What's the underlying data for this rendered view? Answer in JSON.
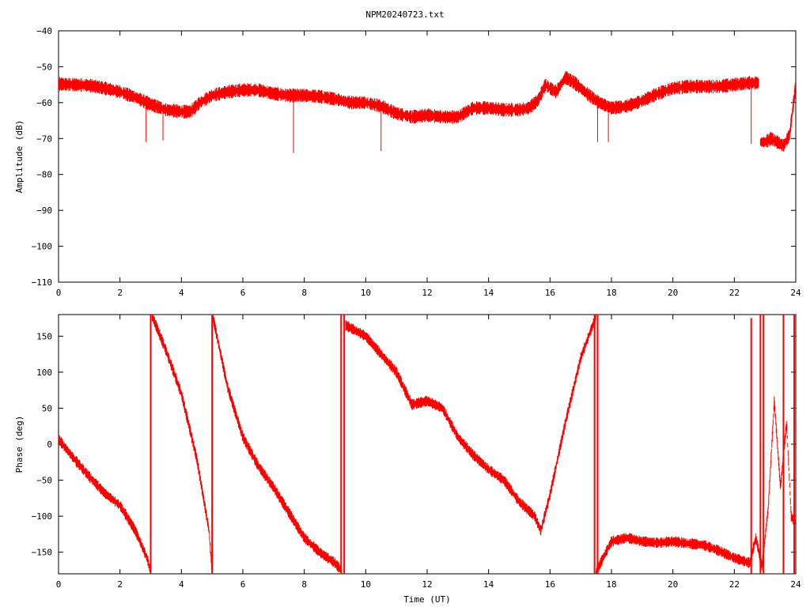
{
  "title": "NPM20240723.txt",
  "chart_data": [
    {
      "type": "line",
      "name": "amplitude",
      "ylabel": "Amplitude (dB)",
      "xlabel": "",
      "xlim": [
        0,
        24
      ],
      "ylim": [
        -110,
        -40
      ],
      "xticks": [
        0,
        2,
        4,
        6,
        8,
        10,
        12,
        14,
        16,
        18,
        20,
        22,
        24
      ],
      "yticks": [
        -110,
        -100,
        -90,
        -80,
        -70,
        -60,
        -50,
        -40
      ],
      "color": "#ff0000",
      "series": [
        {
          "x": [
            0,
            0.5,
            1,
            1.5,
            2,
            2.5,
            3,
            3.5,
            4,
            4.3,
            4.6,
            5,
            5.5,
            6,
            6.5,
            7,
            7.5,
            8,
            8.5,
            9,
            9.5,
            10,
            10.5,
            11,
            11.5,
            12,
            12.5,
            13,
            13.5,
            14,
            14.5,
            15,
            15.3,
            15.6,
            15.85,
            16,
            16.2,
            16.5,
            16.8,
            17.2,
            17.6,
            18,
            18.5,
            19,
            19.5,
            20,
            20.5,
            21,
            21.5,
            22,
            22.5,
            22.8
          ],
          "y": [
            -54.8,
            -55,
            -55.2,
            -56,
            -57,
            -58.5,
            -60.5,
            -62,
            -62.5,
            -62.5,
            -60,
            -58,
            -57,
            -56.5,
            -56.5,
            -57.5,
            -58,
            -58,
            -58.3,
            -59,
            -60,
            -60,
            -61,
            -63,
            -64,
            -63.5,
            -64,
            -64,
            -61.5,
            -61.5,
            -62,
            -62,
            -61.5,
            -59.5,
            -55,
            -56,
            -57,
            -53,
            -54.5,
            -57.5,
            -60,
            -61.5,
            -61,
            -59.5,
            -57.5,
            -56,
            -55.5,
            -55.5,
            -55.5,
            -55,
            -54.5,
            -54.5
          ]
        },
        {
          "x": [
            22.85,
            23,
            23.2,
            23.4,
            23.6,
            23.8,
            23.9,
            24
          ],
          "y": [
            -71,
            -71,
            -70,
            -71,
            -72,
            -69,
            -62,
            -55
          ]
        }
      ],
      "spikes": [
        {
          "x": 2.85,
          "y": -71
        },
        {
          "x": 3.4,
          "y": -70.5
        },
        {
          "x": 7.65,
          "y": -74
        },
        {
          "x": 10.5,
          "y": -73.5
        },
        {
          "x": 17.55,
          "y": -71
        },
        {
          "x": 17.9,
          "y": -71
        },
        {
          "x": 22.55,
          "y": -71.5
        }
      ]
    },
    {
      "type": "line",
      "name": "phase",
      "ylabel": "Phase (deg)",
      "xlabel": "Time (UT)",
      "xlim": [
        0,
        24
      ],
      "ylim": [
        -180,
        180
      ],
      "xticks": [
        0,
        2,
        4,
        6,
        8,
        10,
        12,
        14,
        16,
        18,
        20,
        22,
        24
      ],
      "yticks": [
        -150,
        -100,
        -50,
        0,
        50,
        100,
        150
      ],
      "color": "#ff0000",
      "series": [
        {
          "x": [
            0,
            0.5,
            1,
            1.5,
            2,
            2.5,
            2.9,
            3.0
          ],
          "y": [
            7,
            -20,
            -45,
            -68,
            -85,
            -120,
            -160,
            -178
          ]
        },
        {
          "x": [
            3.05,
            3.5,
            4,
            4.5,
            4.9,
            5.0
          ],
          "y": [
            178,
            130,
            70,
            -20,
            -120,
            -178
          ]
        },
        {
          "x": [
            5.02,
            5.5,
            6,
            6.5,
            7,
            7.5,
            8,
            8.5,
            9,
            9.2
          ],
          "y": [
            178,
            80,
            10,
            -30,
            -60,
            -95,
            -130,
            -150,
            -165,
            -175
          ]
        },
        {
          "x": [
            9.35,
            10,
            10.5,
            11,
            11.5,
            12,
            12.5,
            13,
            13.5,
            14,
            14.5,
            15,
            15.5,
            15.7
          ],
          "y": [
            165,
            150,
            125,
            100,
            55,
            60,
            50,
            10,
            -15,
            -35,
            -50,
            -80,
            -100,
            -120
          ]
        },
        {
          "x": [
            15.7,
            16,
            16.5,
            17,
            17.5
          ],
          "y": [
            -120,
            -70,
            30,
            120,
            178
          ]
        },
        {
          "x": [
            17.5,
            17.7,
            18,
            18.5,
            19,
            19.5,
            20,
            20.5,
            21,
            21.5,
            22,
            22.5
          ],
          "y": [
            -178,
            -160,
            -135,
            -130,
            -135,
            -137,
            -135,
            -138,
            -140,
            -148,
            -158,
            -165
          ]
        },
        {
          "x": [
            22.5,
            22.7,
            22.9,
            23.1,
            23.3,
            23.5,
            23.7,
            23.85,
            24
          ],
          "y": [
            -165,
            -130,
            -170,
            -90,
            60,
            -60,
            30,
            -100,
            -110
          ]
        }
      ],
      "wraps": [
        {
          "x": 3.0,
          "from": -180,
          "to": 180
        },
        {
          "x": 5.0,
          "from": -180,
          "to": 180
        },
        {
          "x": 9.2,
          "from": -180,
          "to": 180
        },
        {
          "x": 9.3,
          "from": -180,
          "to": 180
        },
        {
          "x": 17.45,
          "from": -180,
          "to": 180
        },
        {
          "x": 17.55,
          "from": -180,
          "to": 180
        },
        {
          "x": 22.55,
          "from": -180,
          "to": 175
        },
        {
          "x": 22.85,
          "from": -180,
          "to": 180
        },
        {
          "x": 22.95,
          "from": -180,
          "to": 180
        },
        {
          "x": 23.6,
          "from": -180,
          "to": 180
        },
        {
          "x": 23.95,
          "from": -180,
          "to": 180
        }
      ]
    }
  ]
}
